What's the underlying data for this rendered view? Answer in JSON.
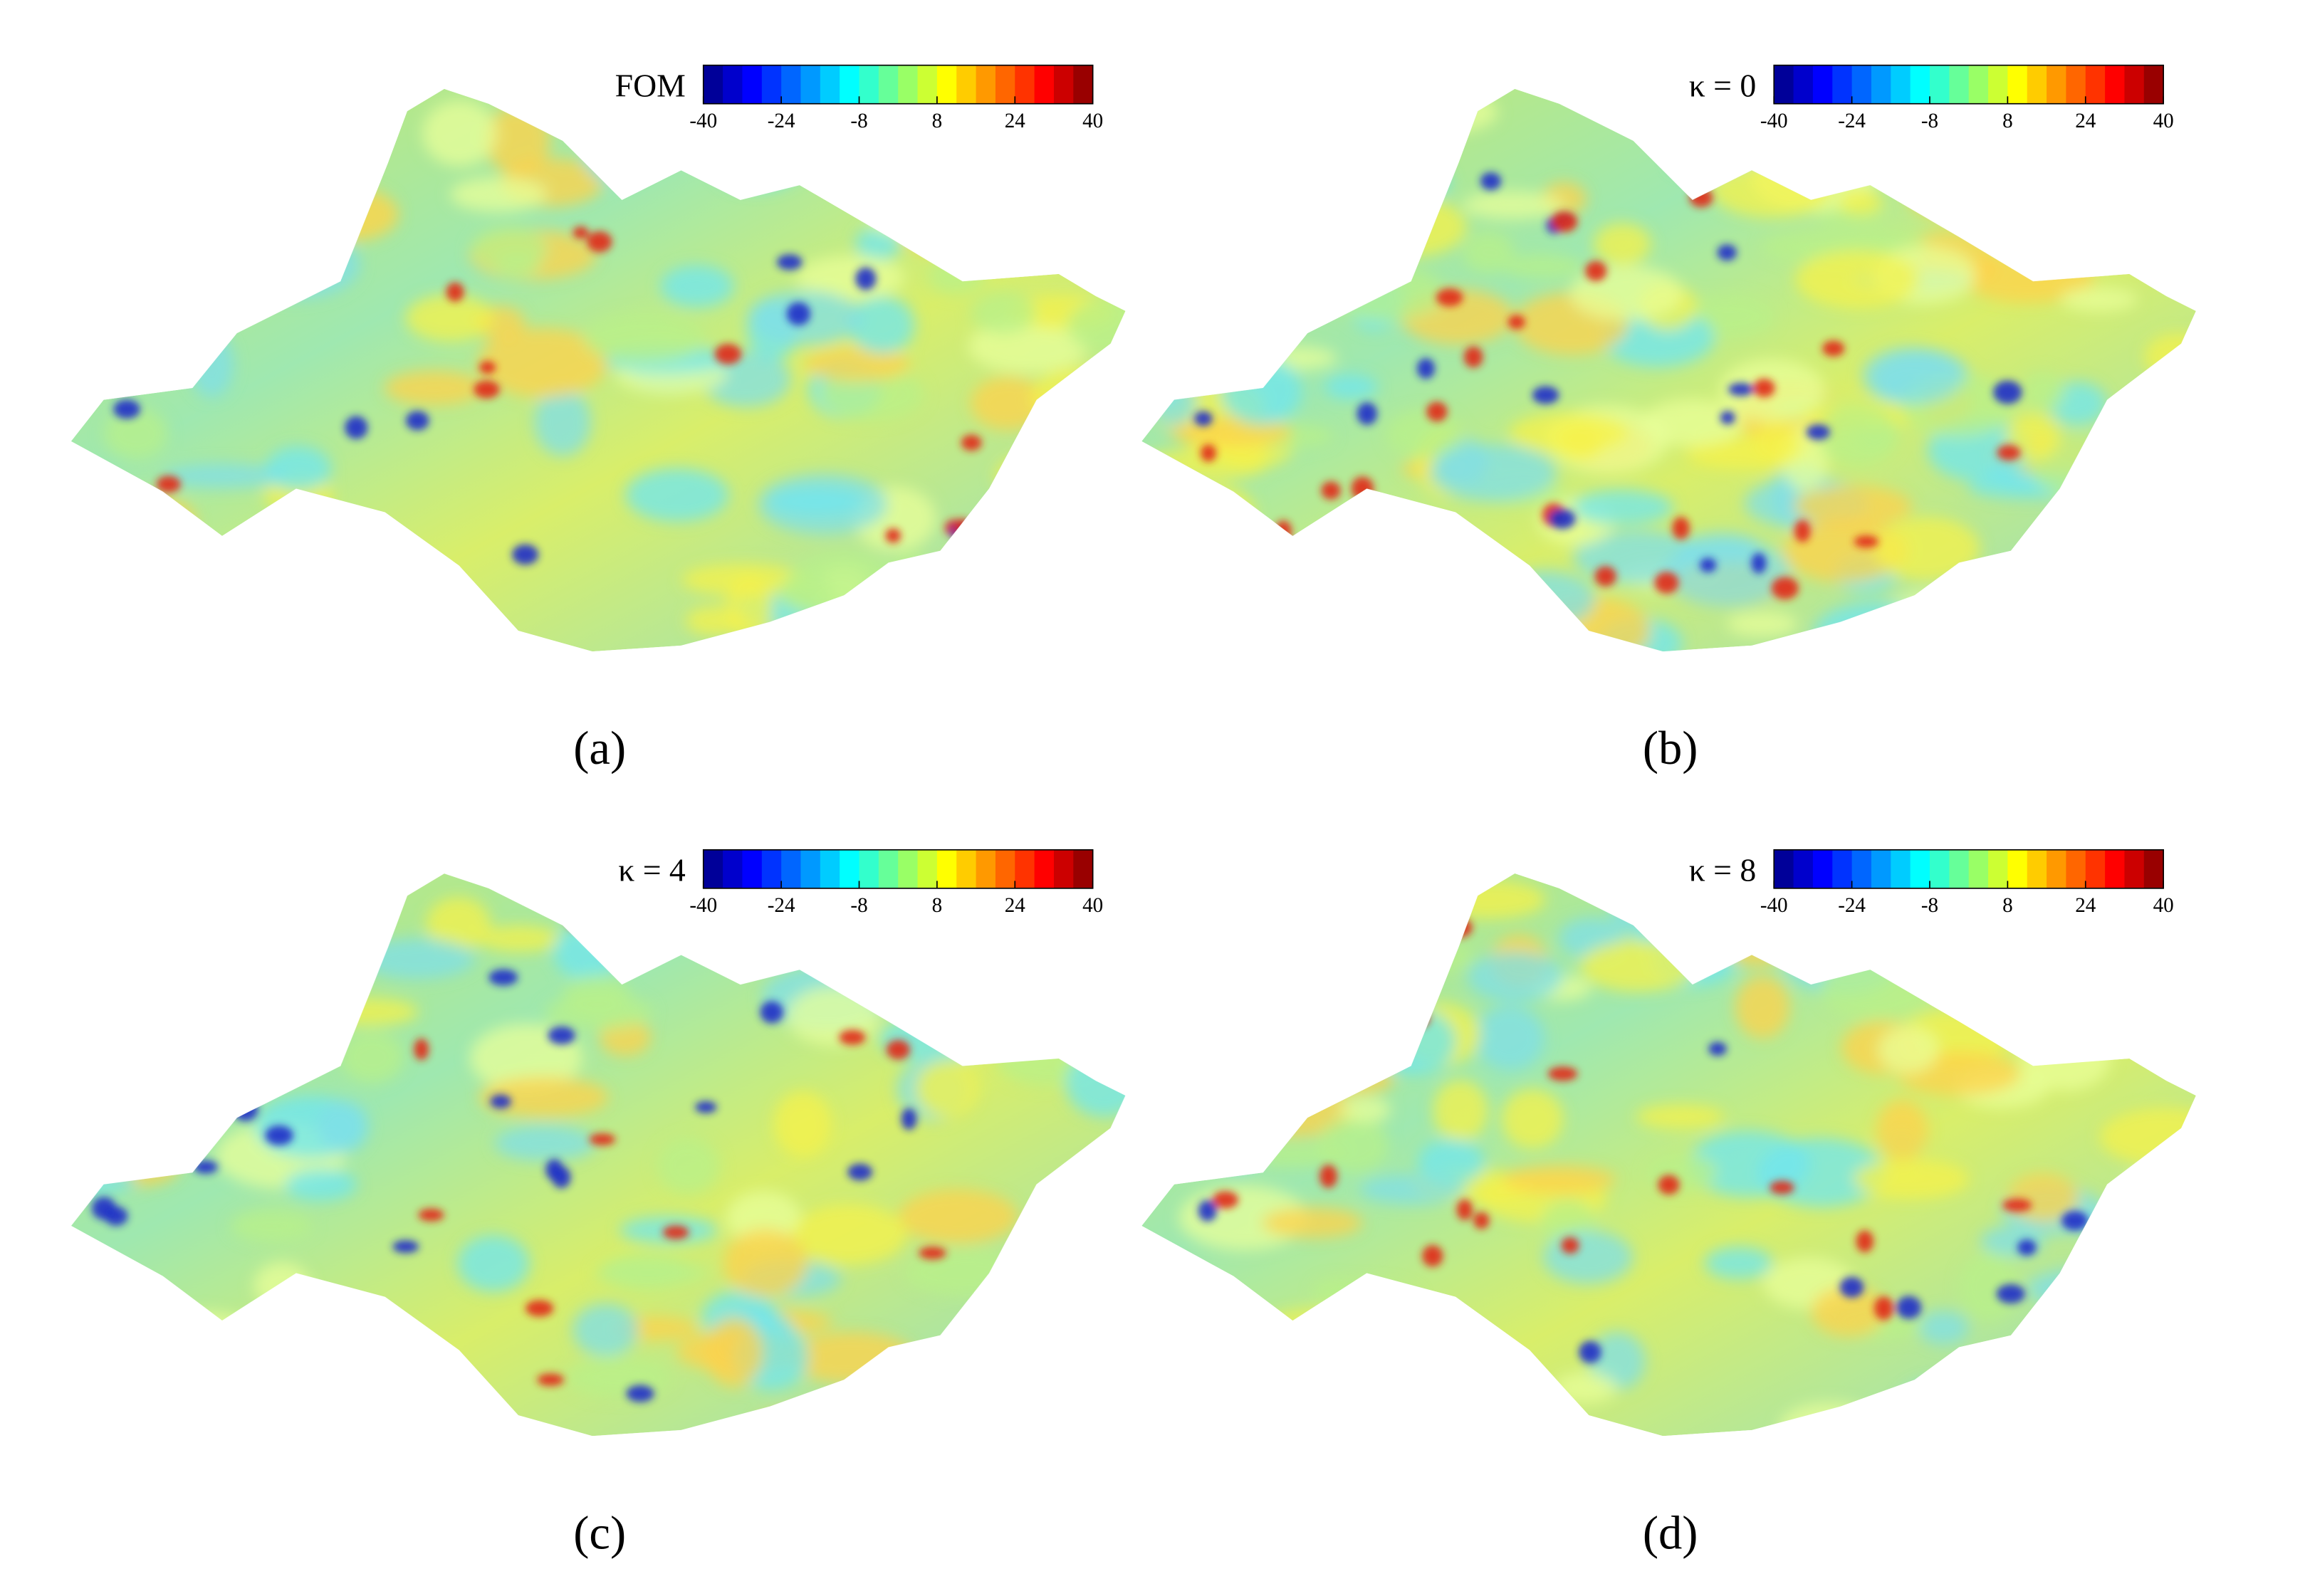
{
  "panels": [
    {
      "title": "FOM",
      "label": "(a)",
      "colorbar": {
        "lim": [
          -40,
          40
        ],
        "ticks": [
          -40,
          -24,
          -8,
          8,
          24,
          40
        ]
      }
    },
    {
      "title": "κ = 0",
      "label": "(b)",
      "colorbar": {
        "lim": [
          -40,
          40
        ],
        "ticks": [
          -40,
          -24,
          -8,
          8,
          24,
          40
        ]
      }
    },
    {
      "title": "κ = 4",
      "label": "(c)",
      "colorbar": {
        "lim": [
          -40,
          40
        ],
        "ticks": [
          -40,
          -24,
          -8,
          8,
          24,
          40
        ]
      }
    },
    {
      "title": "κ = 8",
      "label": "(d)",
      "colorbar": {
        "lim": [
          -40,
          40
        ],
        "ticks": [
          -40,
          -24,
          -8,
          8,
          24,
          40
        ]
      }
    }
  ]
}
